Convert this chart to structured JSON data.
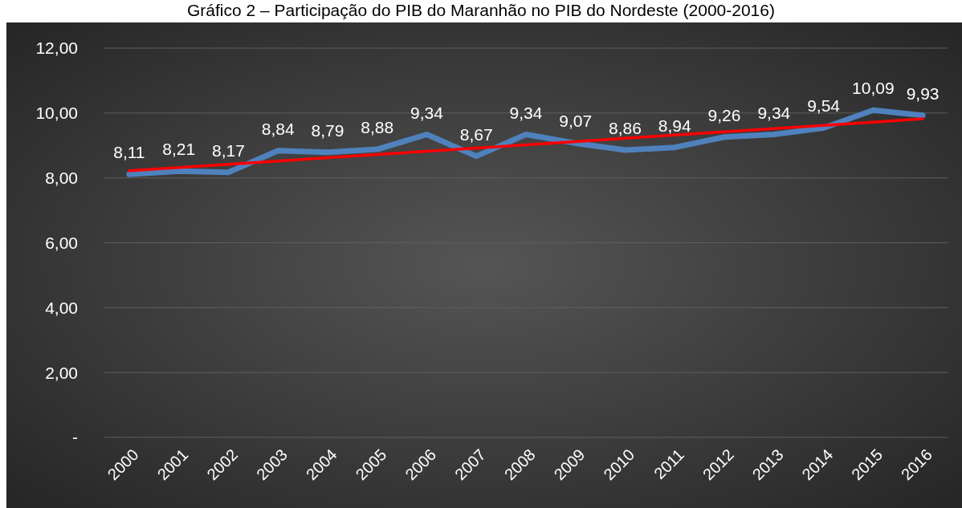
{
  "chart_data": {
    "type": "line",
    "title": "Gráfico 2 – Participação do PIB do Maranhão no PIB do Nordeste (2000-2016)",
    "categories": [
      "2000",
      "2001",
      "2002",
      "2003",
      "2004",
      "2005",
      "2006",
      "2007",
      "2008",
      "2009",
      "2010",
      "2011",
      "2012",
      "2013",
      "2014",
      "2015",
      "2016"
    ],
    "series": [
      {
        "color": "#4f81bd",
        "values": [
          8.11,
          8.21,
          8.17,
          8.84,
          8.79,
          8.88,
          9.34,
          8.67,
          9.34,
          9.07,
          8.86,
          8.94,
          9.26,
          9.34,
          9.54,
          10.09,
          9.93
        ],
        "value_labels": [
          "8,11",
          "8,21",
          "8,17",
          "8,84",
          "8,79",
          "8,88",
          "9,34",
          "8,67",
          "9,34",
          "9,07",
          "8,86",
          "8,94",
          "9,26",
          "9,34",
          "9,54",
          "10,09",
          "9,93"
        ]
      },
      {
        "type": "line",
        "color": "#ff0000",
        "values": [
          8.22,
          8.32,
          8.42,
          8.52,
          8.62,
          8.72,
          8.82,
          8.92,
          9.02,
          9.12,
          9.22,
          9.32,
          9.42,
          9.52,
          9.62,
          9.72,
          9.82
        ]
      }
    ],
    "ylim": [
      0,
      12
    ],
    "yticks": [
      {
        "value": 0,
        "label": "-"
      },
      {
        "value": 2,
        "label": "2,00"
      },
      {
        "value": 4,
        "label": "4,00"
      },
      {
        "value": 6,
        "label": "6,00"
      },
      {
        "value": 8,
        "label": "8,00"
      },
      {
        "value": 10,
        "label": "10,00"
      },
      {
        "value": 12,
        "label": "12,00"
      }
    ],
    "grid": "y",
    "marker": "none",
    "line_style": "solid"
  }
}
